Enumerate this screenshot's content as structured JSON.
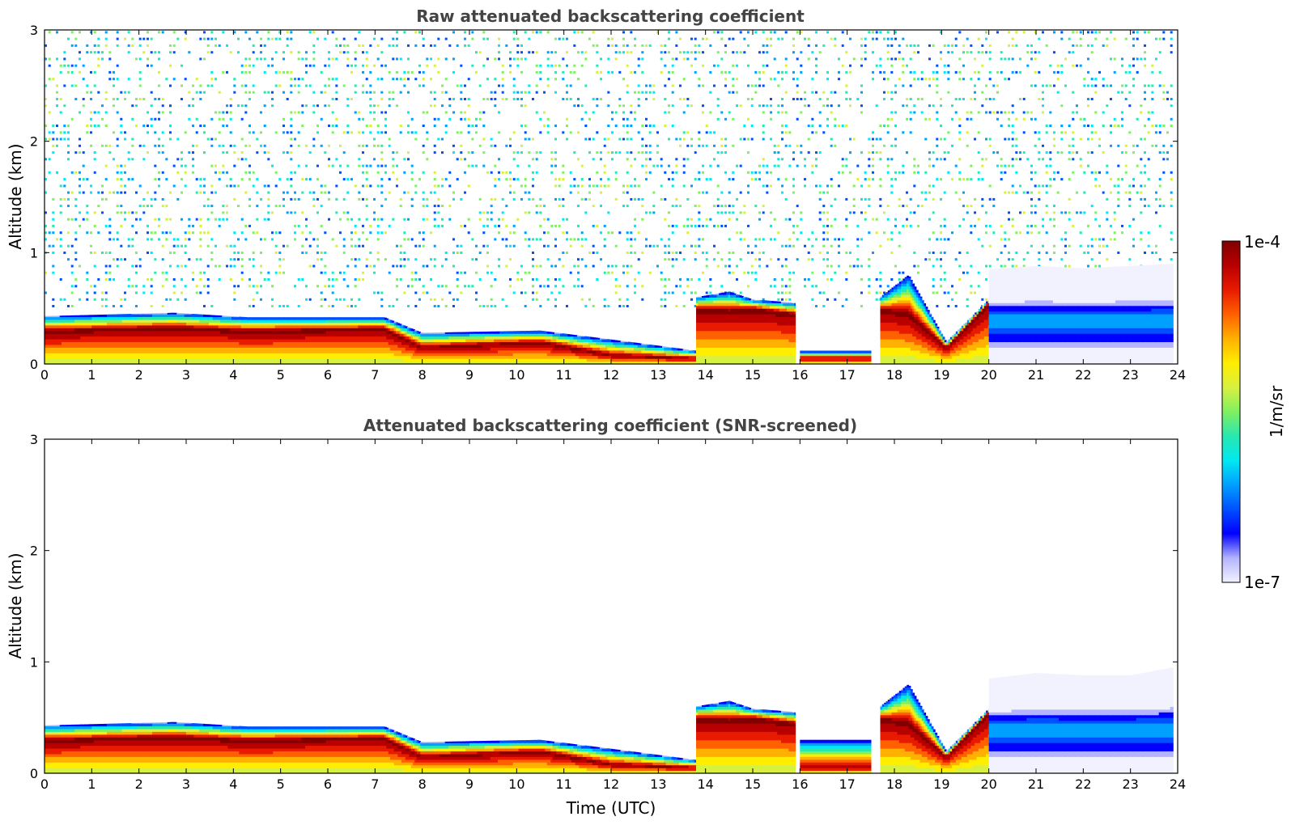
{
  "colors": {
    "colormap": [
      "#f2f2ff",
      "#b4b4ff",
      "#0000ff",
      "#0050ff",
      "#00a0ff",
      "#00e8f0",
      "#28e8b0",
      "#80f060",
      "#d8f040",
      "#ffee00",
      "#ffb000",
      "#ff6000",
      "#e81a00",
      "#b80000",
      "#800000"
    ],
    "nan": "#ffffff",
    "title": "#444444"
  },
  "colorbar": {
    "max_label": "1e-4",
    "min_label": "1e-7",
    "unit_label": "1/m/sr",
    "min": 1e-07,
    "max": 0.0001,
    "scale": "log"
  },
  "chart_data": [
    {
      "type": "heatmap",
      "title": "Raw attenuated backscattering coefficient",
      "xlabel": "",
      "ylabel": "Altitude (km)",
      "xlim": [
        0,
        24
      ],
      "ylim": [
        0,
        3
      ],
      "xticks": [
        "0",
        "1",
        "2",
        "3",
        "4",
        "5",
        "6",
        "7",
        "8",
        "9",
        "10",
        "11",
        "12",
        "13",
        "14",
        "15",
        "16",
        "17",
        "18",
        "19",
        "20",
        "21",
        "22",
        "23",
        "24"
      ],
      "yticks": [
        "0",
        "1",
        "2",
        "3"
      ],
      "value_unit": "1/m/sr",
      "color_scale": "log",
      "layers": [
        {
          "time": [
            0,
            2.75,
            4.3,
            7.2,
            8.0,
            10.5,
            12.0,
            13.8
          ],
          "top_km": [
            0.43,
            0.46,
            0.42,
            0.42,
            0.28,
            0.3,
            0.22,
            0.12
          ],
          "peak_km": [
            0.3,
            0.33,
            0.3,
            0.32,
            0.15,
            0.2,
            0.08,
            0.05
          ],
          "peak_value": 0.0001
        },
        {
          "time": [
            13.8,
            14.5,
            15.0,
            15.9
          ],
          "top_km": [
            0.6,
            0.65,
            0.58,
            0.55
          ],
          "peak_km": [
            0.5,
            0.48,
            0.5,
            0.45
          ],
          "peak_value": 0.0001
        },
        {
          "time": [
            16.0,
            17.5
          ],
          "top_km": [
            0.12,
            0.12
          ],
          "peak_km": [
            0.05,
            0.05
          ],
          "peak_value": 0.0001
        },
        {
          "time": [
            17.7,
            18.3,
            19.1,
            20.0
          ],
          "top_km": [
            0.6,
            0.8,
            0.2,
            0.58
          ],
          "peak_km": [
            0.5,
            0.45,
            0.15,
            0.55
          ],
          "peak_value": 0.0001
        },
        {
          "time": [
            20.0,
            21.0,
            22.0,
            23.0,
            23.9
          ],
          "top_km": [
            0.85,
            0.88,
            0.86,
            0.88,
            0.9
          ],
          "peak_km": [
            0.4,
            0.4,
            0.4,
            0.4,
            0.4
          ],
          "peak_value": 1e-06
        }
      ],
      "noise_above_layer": {
        "typical_value": 1e-06,
        "extends_to_km": 3
      }
    },
    {
      "type": "heatmap",
      "title": "Attenuated backscattering coefficient (SNR-screened)",
      "xlabel": "Time (UTC)",
      "ylabel": "Altitude (km)",
      "xlim": [
        0,
        24
      ],
      "ylim": [
        0,
        3
      ],
      "xticks": [
        "0",
        "1",
        "2",
        "3",
        "4",
        "5",
        "6",
        "7",
        "8",
        "9",
        "10",
        "11",
        "12",
        "13",
        "14",
        "15",
        "16",
        "17",
        "18",
        "19",
        "20",
        "21",
        "22",
        "23",
        "24"
      ],
      "yticks": [
        "0",
        "1",
        "2",
        "3"
      ],
      "value_unit": "1/m/sr",
      "color_scale": "log",
      "layers": [
        {
          "time": [
            0,
            2.75,
            4.3,
            7.2,
            8.0,
            10.5,
            12.0,
            13.8
          ],
          "top_km": [
            0.43,
            0.46,
            0.42,
            0.42,
            0.28,
            0.3,
            0.22,
            0.12
          ],
          "peak_km": [
            0.3,
            0.33,
            0.3,
            0.32,
            0.15,
            0.2,
            0.08,
            0.05
          ],
          "peak_value": 0.0001
        },
        {
          "time": [
            13.8,
            14.5,
            15.0,
            15.9
          ],
          "top_km": [
            0.6,
            0.65,
            0.58,
            0.55
          ],
          "peak_km": [
            0.5,
            0.48,
            0.5,
            0.45
          ],
          "peak_value": 0.0001
        },
        {
          "time": [
            16.0,
            17.5
          ],
          "top_km": [
            0.3,
            0.3
          ],
          "peak_km": [
            0.05,
            0.05
          ],
          "peak_value": 0.0001
        },
        {
          "time": [
            17.7,
            18.3,
            19.1,
            20.0
          ],
          "top_km": [
            0.6,
            0.8,
            0.2,
            0.58
          ],
          "peak_km": [
            0.5,
            0.45,
            0.15,
            0.55
          ],
          "peak_value": 0.0001
        },
        {
          "time": [
            20.0,
            21.0,
            22.0,
            23.0,
            23.9
          ],
          "top_km": [
            0.85,
            0.9,
            0.88,
            0.88,
            0.95
          ],
          "peak_km": [
            0.4,
            0.4,
            0.4,
            0.4,
            0.4
          ],
          "peak_value": 1e-06
        }
      ],
      "noise_above_layer": {
        "typical_value": null,
        "extends_to_km": 0
      }
    }
  ]
}
